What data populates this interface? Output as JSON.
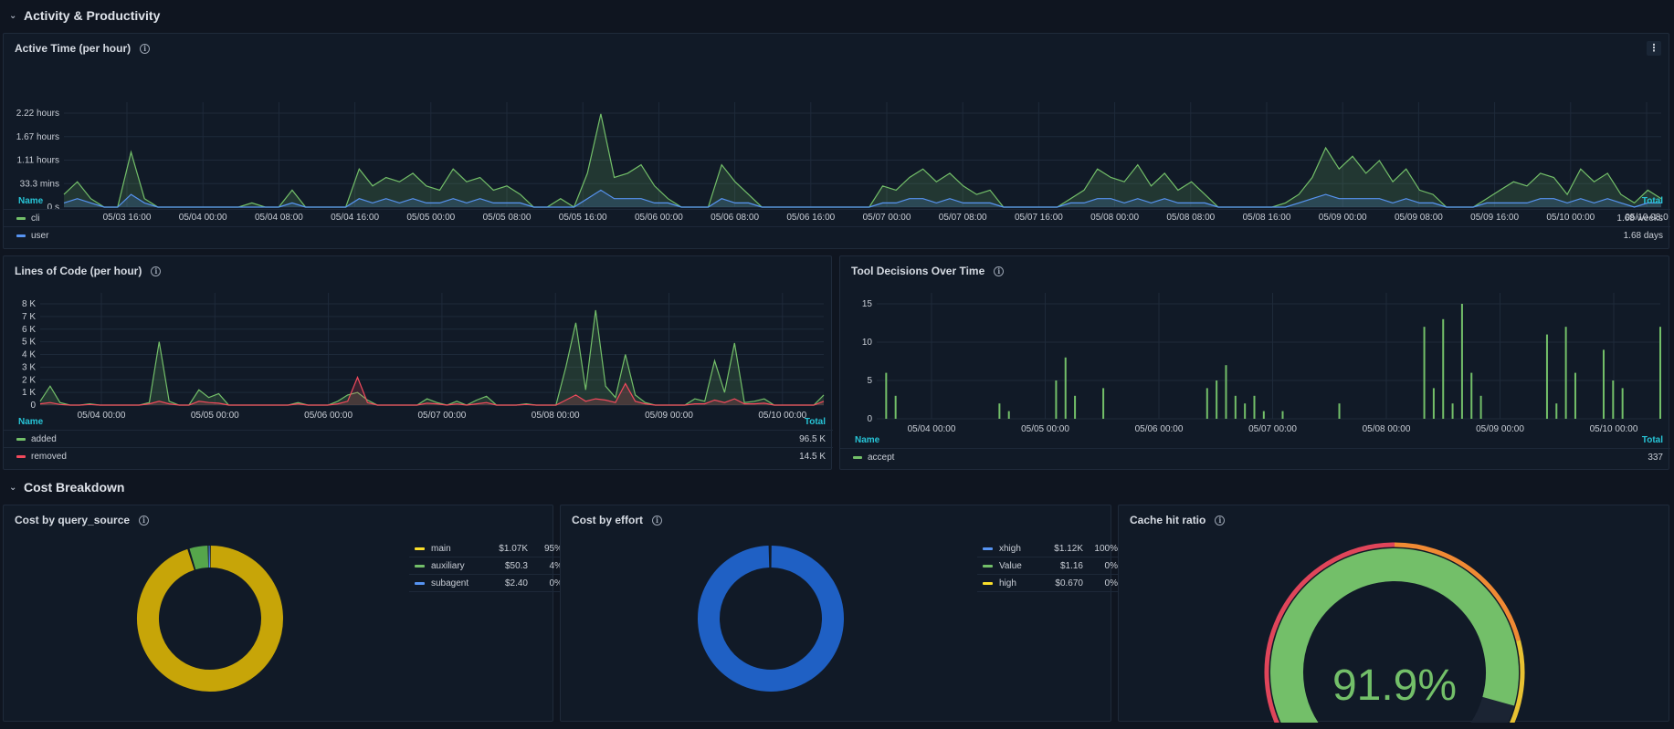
{
  "sections": {
    "activity": "Activity & Productivity",
    "cost": "Cost Breakdown"
  },
  "colors": {
    "green": "#73bf69",
    "blue": "#5794f2",
    "red": "#f2495c",
    "yellow": "#c7a508",
    "grid": "#1e2a3a"
  },
  "panels": {
    "active_time": {
      "title": "Active Time (per hour)",
      "legend_name_header": "Name",
      "legend_total_header": "Total",
      "series": [
        {
          "name": "cli",
          "total": "1.68 weeks",
          "color": "#73bf69"
        },
        {
          "name": "user",
          "total": "1.68 days",
          "color": "#5794f2"
        }
      ]
    },
    "lines_of_code": {
      "title": "Lines of Code (per hour)",
      "legend_name_header": "Name",
      "legend_total_header": "Total",
      "series": [
        {
          "name": "added",
          "total": "96.5 K",
          "color": "#73bf69"
        },
        {
          "name": "removed",
          "total": "14.5 K",
          "color": "#f2495c"
        }
      ]
    },
    "tool_decisions": {
      "title": "Tool Decisions Over Time",
      "legend_name_header": "Name",
      "legend_total_header": "Total",
      "series": [
        {
          "name": "accept",
          "total": "337",
          "color": "#73bf69"
        }
      ]
    },
    "cost_query_source": {
      "title": "Cost by query_source",
      "items": [
        {
          "label": "main",
          "value": "$1.07K",
          "pct": "95%",
          "color": "#c7a508"
        },
        {
          "label": "auxiliary",
          "value": "$50.3",
          "pct": "4%",
          "color": "#56a64b"
        },
        {
          "label": "subagent",
          "value": "$2.40",
          "pct": "0%",
          "color": "#5794f2"
        }
      ]
    },
    "cost_effort": {
      "title": "Cost by effort",
      "items": [
        {
          "label": "xhigh",
          "value": "$1.12K",
          "pct": "100%",
          "color": "#5794f2"
        },
        {
          "label": "Value",
          "value": "$1.16",
          "pct": "0%",
          "color": "#73bf69"
        },
        {
          "label": "high",
          "value": "$0.670",
          "pct": "0%",
          "color": "#fade2a"
        }
      ]
    },
    "cache_hit": {
      "title": "Cache hit ratio",
      "value_text": "91.9%"
    }
  },
  "chart_data": [
    {
      "type": "line",
      "title": "Active Time (per hour)",
      "x_ticks": [
        "05/03 16:00",
        "05/04 00:00",
        "05/04 08:00",
        "05/04 16:00",
        "05/05 00:00",
        "05/05 08:00",
        "05/05 16:00",
        "05/06 00:00",
        "05/06 08:00",
        "05/06 16:00",
        "05/07 00:00",
        "05/07 08:00",
        "05/07 16:00",
        "05/08 00:00",
        "05/08 08:00",
        "05/08 16:00",
        "05/09 00:00",
        "05/09 08:00",
        "05/09 16:00",
        "05/10 00:00",
        "05/10 08:0"
      ],
      "y_ticks": [
        "0 s",
        "33.3 mins",
        "1.11 hours",
        "1.67 hours",
        "2.22 hours"
      ],
      "series": [
        {
          "name": "cli",
          "values": [
            0.3,
            0.6,
            0.2,
            0,
            0,
            1.3,
            0.2,
            0,
            0,
            0,
            0,
            0,
            0,
            0,
            0.1,
            0,
            0,
            0.4,
            0,
            0,
            0,
            0,
            0.9,
            0.5,
            0.7,
            0.6,
            0.8,
            0.5,
            0.4,
            0.9,
            0.6,
            0.7,
            0.4,
            0.5,
            0.3,
            0,
            0,
            0.2,
            0,
            0.8,
            2.2,
            0.7,
            0.8,
            1.0,
            0.5,
            0.2,
            0,
            0,
            0,
            1.0,
            0.6,
            0.3,
            0,
            0,
            0,
            0,
            0,
            0,
            0,
            0,
            0,
            0.5,
            0.4,
            0.7,
            0.9,
            0.6,
            0.8,
            0.5,
            0.3,
            0.4,
            0,
            0,
            0,
            0,
            0,
            0.2,
            0.4,
            0.9,
            0.7,
            0.6,
            1.0,
            0.5,
            0.8,
            0.4,
            0.6,
            0.3,
            0,
            0,
            0,
            0,
            0,
            0.1,
            0.3,
            0.7,
            1.4,
            0.9,
            1.2,
            0.8,
            1.1,
            0.6,
            0.9,
            0.4,
            0.3,
            0,
            0,
            0,
            0.2,
            0.4,
            0.6,
            0.5,
            0.8,
            0.7,
            0.3,
            0.9,
            0.6,
            0.8,
            0.3,
            0.1,
            0.4,
            0.2
          ]
        },
        {
          "name": "user",
          "values": [
            0.1,
            0.2,
            0.1,
            0,
            0,
            0.3,
            0.1,
            0,
            0,
            0,
            0,
            0,
            0,
            0,
            0,
            0,
            0,
            0.1,
            0,
            0,
            0,
            0,
            0.2,
            0.1,
            0.2,
            0.1,
            0.2,
            0.1,
            0.1,
            0.2,
            0.1,
            0.2,
            0.1,
            0.1,
            0.1,
            0,
            0,
            0,
            0,
            0.2,
            0.4,
            0.2,
            0.2,
            0.2,
            0.1,
            0.1,
            0,
            0,
            0,
            0.2,
            0.1,
            0.1,
            0,
            0,
            0,
            0,
            0,
            0,
            0,
            0,
            0,
            0.1,
            0.1,
            0.2,
            0.2,
            0.1,
            0.2,
            0.1,
            0.1,
            0.1,
            0,
            0,
            0,
            0,
            0,
            0.1,
            0.1,
            0.2,
            0.2,
            0.1,
            0.2,
            0.1,
            0.2,
            0.1,
            0.1,
            0.1,
            0,
            0,
            0,
            0,
            0,
            0,
            0.1,
            0.2,
            0.3,
            0.2,
            0.2,
            0.2,
            0.2,
            0.1,
            0.2,
            0.1,
            0.1,
            0,
            0,
            0,
            0.1,
            0.1,
            0.1,
            0.1,
            0.2,
            0.2,
            0.1,
            0.2,
            0.1,
            0.2,
            0.1,
            0,
            0.1,
            0.1
          ]
        }
      ]
    },
    {
      "type": "line",
      "title": "Lines of Code (per hour)",
      "x_ticks": [
        "05/04 00:00",
        "05/05 00:00",
        "05/06 00:00",
        "05/07 00:00",
        "05/08 00:00",
        "05/09 00:00",
        "05/10 00:00"
      ],
      "y_ticks": [
        "0",
        "1 K",
        "2 K",
        "3 K",
        "4 K",
        "5 K",
        "6 K",
        "7 K",
        "8 K"
      ],
      "series": [
        {
          "name": "added",
          "values": [
            300,
            1500,
            200,
            0,
            0,
            100,
            0,
            0,
            0,
            0,
            0,
            200,
            5000,
            300,
            0,
            0,
            1200,
            600,
            900,
            0,
            0,
            0,
            0,
            0,
            0,
            0,
            200,
            0,
            0,
            0,
            300,
            800,
            1000,
            400,
            0,
            0,
            0,
            0,
            0,
            500,
            200,
            0,
            300,
            0,
            400,
            700,
            0,
            0,
            0,
            100,
            0,
            0,
            0,
            3000,
            6500,
            1200,
            7500,
            1500,
            600,
            4000,
            800,
            200,
            0,
            0,
            0,
            0,
            500,
            300,
            3500,
            1000,
            4900,
            200,
            300,
            500,
            0,
            0,
            0,
            0,
            0,
            800
          ]
        },
        {
          "name": "removed",
          "values": [
            100,
            200,
            50,
            0,
            0,
            50,
            0,
            0,
            0,
            0,
            0,
            100,
            300,
            100,
            0,
            0,
            300,
            200,
            150,
            0,
            0,
            0,
            0,
            0,
            0,
            0,
            100,
            0,
            0,
            0,
            100,
            300,
            2200,
            200,
            0,
            0,
            0,
            0,
            0,
            150,
            100,
            0,
            100,
            0,
            100,
            200,
            0,
            0,
            0,
            50,
            0,
            0,
            0,
            400,
            800,
            300,
            500,
            400,
            200,
            1700,
            300,
            100,
            0,
            0,
            0,
            0,
            100,
            100,
            400,
            200,
            500,
            100,
            100,
            150,
            0,
            0,
            0,
            0,
            0,
            300
          ]
        }
      ]
    },
    {
      "type": "bar",
      "title": "Tool Decisions Over Time",
      "x_ticks": [
        "05/04 00:00",
        "05/05 00:00",
        "05/06 00:00",
        "05/07 00:00",
        "05/08 00:00",
        "05/09 00:00",
        "05/10 00:00"
      ],
      "y_ticks": [
        "0",
        "5",
        "10",
        "15"
      ],
      "series": [
        {
          "name": "accept",
          "values": [
            0,
            6,
            3,
            0,
            0,
            0,
            0,
            0,
            0,
            0,
            0,
            0,
            0,
            2,
            1,
            0,
            0,
            0,
            0,
            5,
            8,
            3,
            0,
            0,
            4,
            0,
            0,
            0,
            0,
            0,
            0,
            0,
            0,
            0,
            0,
            4,
            5,
            7,
            3,
            2,
            3,
            1,
            0,
            1,
            0,
            0,
            0,
            0,
            0,
            2,
            0,
            0,
            0,
            0,
            0,
            0,
            0,
            0,
            12,
            4,
            13,
            2,
            15,
            6,
            3,
            0,
            0,
            0,
            0,
            0,
            0,
            11,
            2,
            12,
            6,
            0,
            0,
            9,
            5,
            4,
            0,
            0,
            0,
            12
          ]
        }
      ]
    },
    {
      "type": "pie",
      "title": "Cost by query_source",
      "categories": [
        "main",
        "auxiliary",
        "subagent"
      ],
      "values": [
        1070,
        50.3,
        2.4
      ]
    },
    {
      "type": "pie",
      "title": "Cost by effort",
      "categories": [
        "xhigh",
        "Value",
        "high"
      ],
      "values": [
        1120,
        1.16,
        0.67
      ]
    },
    {
      "type": "gauge",
      "title": "Cache hit ratio",
      "values": [
        91.9
      ],
      "ylim": [
        0,
        100
      ]
    }
  ]
}
